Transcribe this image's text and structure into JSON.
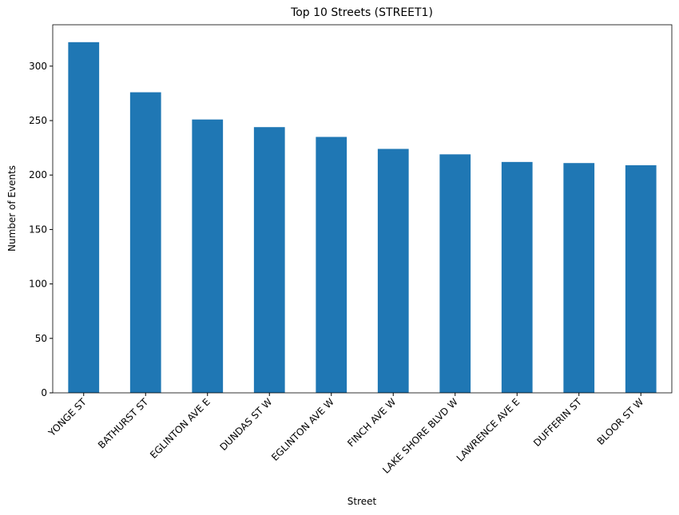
{
  "chart_data": {
    "type": "bar",
    "title": "Top 10 Streets (STREET1)",
    "x_label": "Street",
    "y_label": "Number of Events",
    "categories": [
      "YONGE ST",
      "BATHURST ST",
      "EGLINTON AVE E",
      "DUNDAS ST W",
      "EGLINTON AVE W",
      "FINCH AVE W",
      "LAKE SHORE BLVD W",
      "LAWRENCE AVE E",
      "DUFFERIN ST",
      "BLOOR ST W"
    ],
    "values": [
      322,
      276,
      251,
      244,
      235,
      224,
      219,
      212,
      211,
      209
    ],
    "color": "#1f77b4",
    "ylim": [
      0,
      338
    ],
    "yticks": [
      0,
      50,
      100,
      150,
      200,
      250,
      300
    ],
    "grid": false
  }
}
